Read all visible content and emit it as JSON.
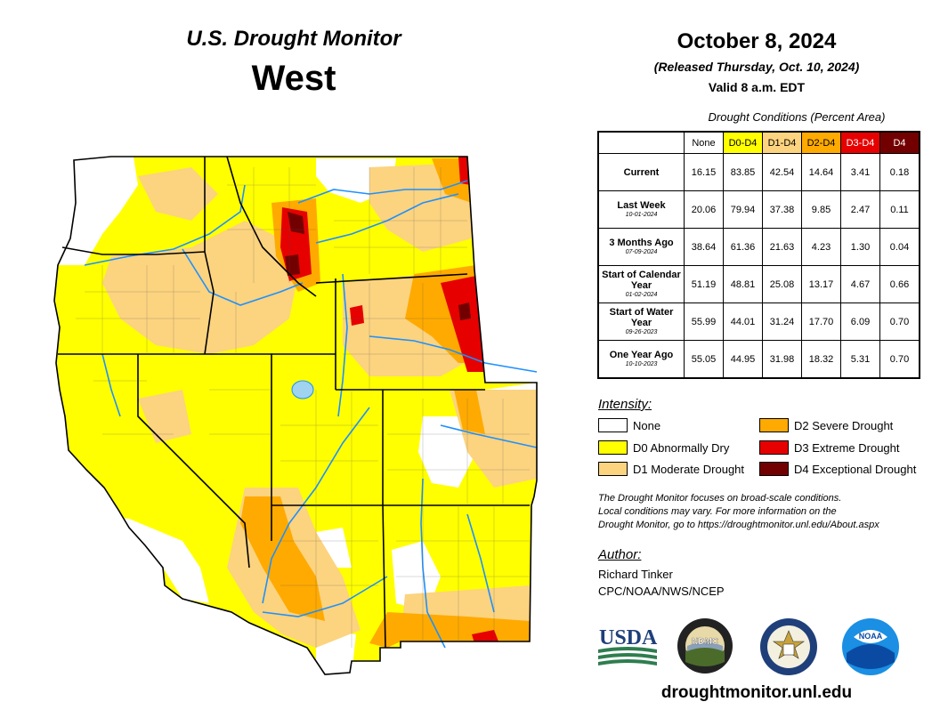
{
  "header": {
    "title": "U.S. Drought Monitor",
    "region": "West",
    "date": "October 8, 2024",
    "released": "(Released Thursday, Oct. 10, 2024)",
    "valid": "Valid 8 a.m. EDT"
  },
  "conditions": {
    "title": "Drought Conditions (Percent Area)",
    "columns": [
      {
        "label": "None",
        "color": "#ffffff"
      },
      {
        "label": "D0-D4",
        "color": "#ffff00"
      },
      {
        "label": "D1-D4",
        "color": "#fcd37f"
      },
      {
        "label": "D2-D4",
        "color": "#ffaa00"
      },
      {
        "label": "D3-D4",
        "color": "#e60000"
      },
      {
        "label": "D4",
        "color": "#730000"
      }
    ],
    "rows": [
      {
        "label": "Current",
        "date": "",
        "values": [
          "16.15",
          "83.85",
          "42.54",
          "14.64",
          "3.41",
          "0.18"
        ]
      },
      {
        "label": "Last Week",
        "date": "10-01-2024",
        "values": [
          "20.06",
          "79.94",
          "37.38",
          "9.85",
          "2.47",
          "0.11"
        ]
      },
      {
        "label": "3 Months Ago",
        "date": "07-09-2024",
        "values": [
          "38.64",
          "61.36",
          "21.63",
          "4.23",
          "1.30",
          "0.04"
        ]
      },
      {
        "label": "Start of Calendar Year",
        "date": "01-02-2024",
        "values": [
          "51.19",
          "48.81",
          "25.08",
          "13.17",
          "4.67",
          "0.66"
        ]
      },
      {
        "label": "Start of Water Year",
        "date": "09-26-2023",
        "values": [
          "55.99",
          "44.01",
          "31.24",
          "17.70",
          "6.09",
          "0.70"
        ]
      },
      {
        "label": "One Year Ago",
        "date": "10-10-2023",
        "values": [
          "55.05",
          "44.95",
          "31.98",
          "18.32",
          "5.31",
          "0.70"
        ]
      }
    ]
  },
  "legend": {
    "title": "Intensity:",
    "items": [
      {
        "label": "None",
        "color": "#ffffff"
      },
      {
        "label": "D0 Abnormally Dry",
        "color": "#ffff00"
      },
      {
        "label": "D1 Moderate Drought",
        "color": "#fcd37f"
      },
      {
        "label": "D2 Severe Drought",
        "color": "#ffaa00"
      },
      {
        "label": "D3 Extreme Drought",
        "color": "#e60000"
      },
      {
        "label": "D4 Exceptional Drought",
        "color": "#730000"
      }
    ]
  },
  "note": {
    "line1": "The Drought Monitor focuses on broad-scale conditions.",
    "line2": "Local conditions may vary. For more information on the",
    "line3": "Drought Monitor, go to https://droughtmonitor.unl.edu/About.aspx"
  },
  "author": {
    "label": "Author:",
    "name": "Richard Tinker",
    "org": "CPC/NOAA/NWS/NCEP"
  },
  "logos": {
    "usda": "USDA",
    "ndmc": "NDMC",
    "noaa": "NOAA"
  },
  "website": "droughtmonitor.unl.edu",
  "map": {
    "water_color": "#1e90ff",
    "lake_color": "#9fd3f0"
  }
}
